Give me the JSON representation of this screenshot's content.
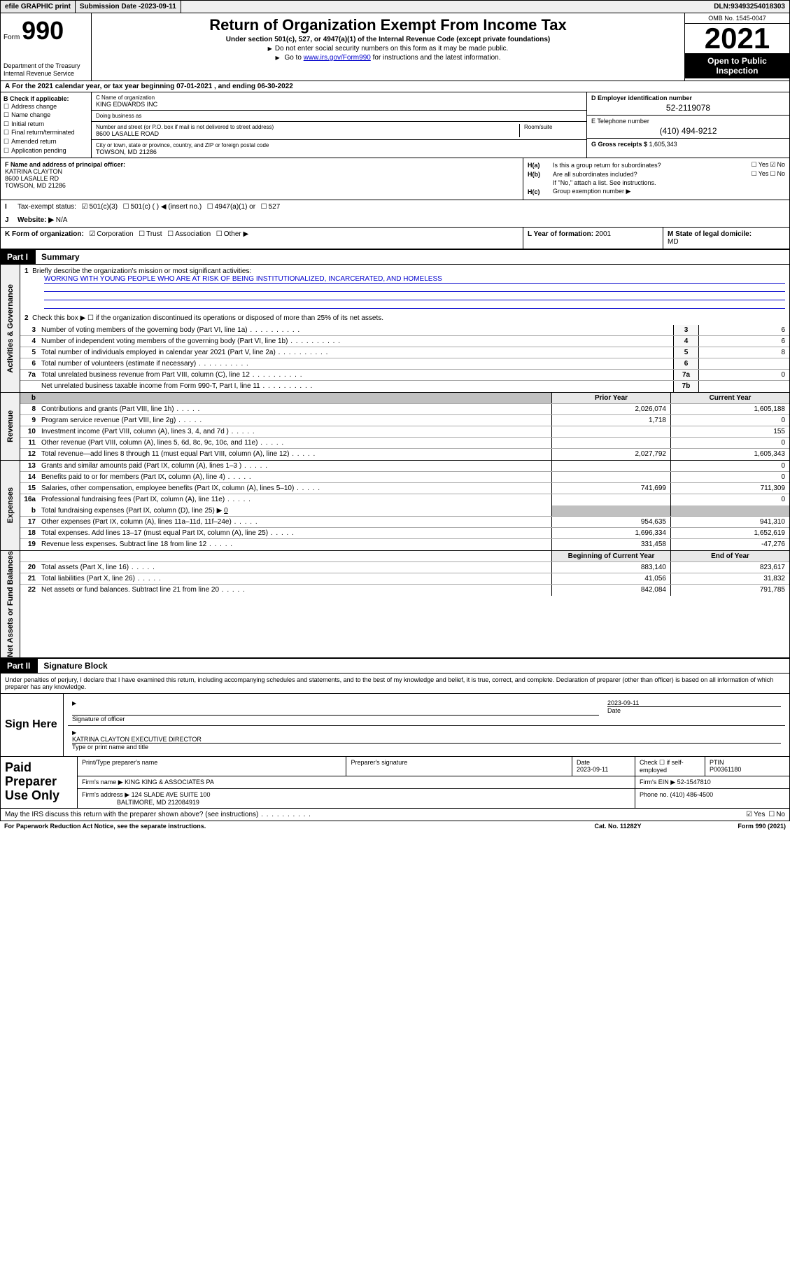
{
  "topbar": {
    "efile": "efile GRAPHIC print",
    "submission_label": "Submission Date - ",
    "submission_date": "2023-09-11",
    "dln_label": "DLN: ",
    "dln": "93493254018303"
  },
  "header": {
    "form_prefix": "Form",
    "form_num": "990",
    "dept": "Department of the Treasury\nInternal Revenue Service",
    "title": "Return of Organization Exempt From Income Tax",
    "sub": "Under section 501(c), 527, or 4947(a)(1) of the Internal Revenue Code (except private foundations)",
    "note1": "Do not enter social security numbers on this form as it may be made public.",
    "note2_pre": "Go to ",
    "note2_link": "www.irs.gov/Form990",
    "note2_post": " for instructions and the latest information.",
    "omb": "OMB No. 1545-0047",
    "year": "2021",
    "open": "Open to Public Inspection"
  },
  "sectionA": {
    "text_pre": "For the 2021 calendar year, or tax year beginning ",
    "begin": "07-01-2021",
    "text_mid": " , and ending ",
    "end": "06-30-2022"
  },
  "blockB": {
    "label": "B Check if applicable:",
    "opts": [
      "Address change",
      "Name change",
      "Initial return",
      "Final return/terminated",
      "Amended return",
      "Application pending"
    ]
  },
  "blockC": {
    "name_lbl": "C Name of organization",
    "name": "KING EDWARDS INC",
    "dba_lbl": "Doing business as",
    "dba": "",
    "addr_lbl": "Number and street (or P.O. box if mail is not delivered to street address)",
    "room_lbl": "Room/suite",
    "addr": "8600 LASALLE ROAD",
    "city_lbl": "City or town, state or province, country, and ZIP or foreign postal code",
    "city": "TOWSON, MD  21286"
  },
  "blockDE": {
    "d_lbl": "D Employer identification number",
    "ein": "52-2119078",
    "e_lbl": "E Telephone number",
    "phone": "(410) 494-9212",
    "g_lbl": "G Gross receipts $ ",
    "gross": "1,605,343"
  },
  "blockF": {
    "lbl": "F Name and address of principal officer:",
    "name": "KATRINA CLAYTON",
    "addr1": "8600 LASALLE RD",
    "addr2": "TOWSON, MD  21286"
  },
  "blockH": {
    "a_lbl": "Is this a group return for subordinates?",
    "b_lbl": "Are all subordinates included?",
    "b_note": "If \"No,\" attach a list. See instructions.",
    "c_lbl": "Group exemption number ▶"
  },
  "rowI": {
    "lbl": "Tax-exempt status:",
    "opts": [
      "501(c)(3)",
      "501(c) (  ) ◀ (insert no.)",
      "4947(a)(1) or",
      "527"
    ]
  },
  "rowJ": {
    "lbl": "Website: ▶",
    "val": "N/A"
  },
  "rowK": {
    "k_lbl": "K Form of organization:",
    "k_opts": [
      "Corporation",
      "Trust",
      "Association",
      "Other ▶"
    ],
    "l_lbl": "L Year of formation: ",
    "l_val": "2001",
    "m_lbl": "M State of legal domicile:",
    "m_val": "MD"
  },
  "part1": {
    "tag": "Part I",
    "title": "Summary",
    "sidebar1": "Activities & Governance",
    "sidebar2": "Revenue",
    "sidebar3": "Expenses",
    "sidebar4": "Net Assets or Fund Balances",
    "l1_lbl": "Briefly describe the organization's mission or most significant activities:",
    "l1_val": "WORKING WITH YOUNG PEOPLE WHO ARE AT RISK OF BEING INSTITUTIONALIZED, INCARCERATED, AND HOMELESS",
    "l2_lbl": "Check this box ▶ ☐ if the organization discontinued its operations or disposed of more than 25% of its net assets.",
    "lines_gov": [
      {
        "n": "3",
        "d": "Number of voting members of the governing body (Part VI, line 1a)",
        "box": "3",
        "v": "6"
      },
      {
        "n": "4",
        "d": "Number of independent voting members of the governing body (Part VI, line 1b)",
        "box": "4",
        "v": "6"
      },
      {
        "n": "5",
        "d": "Total number of individuals employed in calendar year 2021 (Part V, line 2a)",
        "box": "5",
        "v": "8"
      },
      {
        "n": "6",
        "d": "Total number of volunteers (estimate if necessary)",
        "box": "6",
        "v": ""
      },
      {
        "n": "7a",
        "d": "Total unrelated business revenue from Part VIII, column (C), line 12",
        "box": "7a",
        "v": "0"
      },
      {
        "n": "",
        "d": "Net unrelated business taxable income from Form 990-T, Part I, line 11",
        "box": "7b",
        "v": ""
      }
    ],
    "hdr_prior": "Prior Year",
    "hdr_curr": "Current Year",
    "lines_rev": [
      {
        "n": "8",
        "d": "Contributions and grants (Part VIII, line 1h)",
        "p": "2,026,074",
        "c": "1,605,188"
      },
      {
        "n": "9",
        "d": "Program service revenue (Part VIII, line 2g)",
        "p": "1,718",
        "c": "0"
      },
      {
        "n": "10",
        "d": "Investment income (Part VIII, column (A), lines 3, 4, and 7d )",
        "p": "",
        "c": "155"
      },
      {
        "n": "11",
        "d": "Other revenue (Part VIII, column (A), lines 5, 6d, 8c, 9c, 10c, and 11e)",
        "p": "",
        "c": "0"
      },
      {
        "n": "12",
        "d": "Total revenue—add lines 8 through 11 (must equal Part VIII, column (A), line 12)",
        "p": "2,027,792",
        "c": "1,605,343"
      }
    ],
    "lines_exp": [
      {
        "n": "13",
        "d": "Grants and similar amounts paid (Part IX, column (A), lines 1–3 )",
        "p": "",
        "c": "0"
      },
      {
        "n": "14",
        "d": "Benefits paid to or for members (Part IX, column (A), line 4)",
        "p": "",
        "c": "0"
      },
      {
        "n": "15",
        "d": "Salaries, other compensation, employee benefits (Part IX, column (A), lines 5–10)",
        "p": "741,699",
        "c": "711,309"
      },
      {
        "n": "16a",
        "d": "Professional fundraising fees (Part IX, column (A), line 11e)",
        "p": "",
        "c": "0"
      }
    ],
    "line16b": {
      "n": "b",
      "d": "Total fundraising expenses (Part IX, column (D), line 25) ▶",
      "v": "0"
    },
    "lines_exp2": [
      {
        "n": "17",
        "d": "Other expenses (Part IX, column (A), lines 11a–11d, 11f–24e)",
        "p": "954,635",
        "c": "941,310"
      },
      {
        "n": "18",
        "d": "Total expenses. Add lines 13–17 (must equal Part IX, column (A), line 25)",
        "p": "1,696,334",
        "c": "1,652,619"
      },
      {
        "n": "19",
        "d": "Revenue less expenses. Subtract line 18 from line 12",
        "p": "331,458",
        "c": "-47,276"
      }
    ],
    "hdr_begin": "Beginning of Current Year",
    "hdr_end": "End of Year",
    "lines_net": [
      {
        "n": "20",
        "d": "Total assets (Part X, line 16)",
        "p": "883,140",
        "c": "823,617"
      },
      {
        "n": "21",
        "d": "Total liabilities (Part X, line 26)",
        "p": "41,056",
        "c": "31,832"
      },
      {
        "n": "22",
        "d": "Net assets or fund balances. Subtract line 21 from line 20",
        "p": "842,084",
        "c": "791,785"
      }
    ]
  },
  "part2": {
    "tag": "Part II",
    "title": "Signature Block",
    "intro": "Under penalties of perjury, I declare that I have examined this return, including accompanying schedules and statements, and to the best of my knowledge and belief, it is true, correct, and complete. Declaration of preparer (other than officer) is based on all information of which preparer has any knowledge.",
    "sign_here": "Sign Here",
    "sig_officer_lbl": "Signature of officer",
    "sig_date_lbl": "Date",
    "sig_date": "2023-09-11",
    "sig_name": "KATRINA CLAYTON  EXECUTIVE DIRECTOR",
    "sig_name_lbl": "Type or print name and title",
    "paid_lbl": "Paid Preparer Use Only",
    "p_name_lbl": "Print/Type preparer's name",
    "p_sig_lbl": "Preparer's signature",
    "p_date_lbl": "Date",
    "p_date": "2023-09-11",
    "p_check_lbl": "Check ☐ if self-employed",
    "p_ptin_lbl": "PTIN",
    "p_ptin": "P00361180",
    "firm_name_lbl": "Firm's name   ▶",
    "firm_name": "KING KING & ASSOCIATES PA",
    "firm_ein_lbl": "Firm's EIN ▶",
    "firm_ein": "52-1547810",
    "firm_addr_lbl": "Firm's address ▶",
    "firm_addr1": "124 SLADE AVE SUITE 100",
    "firm_addr2": "BALTIMORE, MD  212084919",
    "firm_phone_lbl": "Phone no. ",
    "firm_phone": "(410) 486-4500",
    "may_irs": "May the IRS discuss this return with the preparer shown above? (see instructions)",
    "paperwork": "For Paperwork Reduction Act Notice, see the separate instructions.",
    "cat": "Cat. No. 11282Y",
    "form_foot": "Form 990 (2021)"
  }
}
